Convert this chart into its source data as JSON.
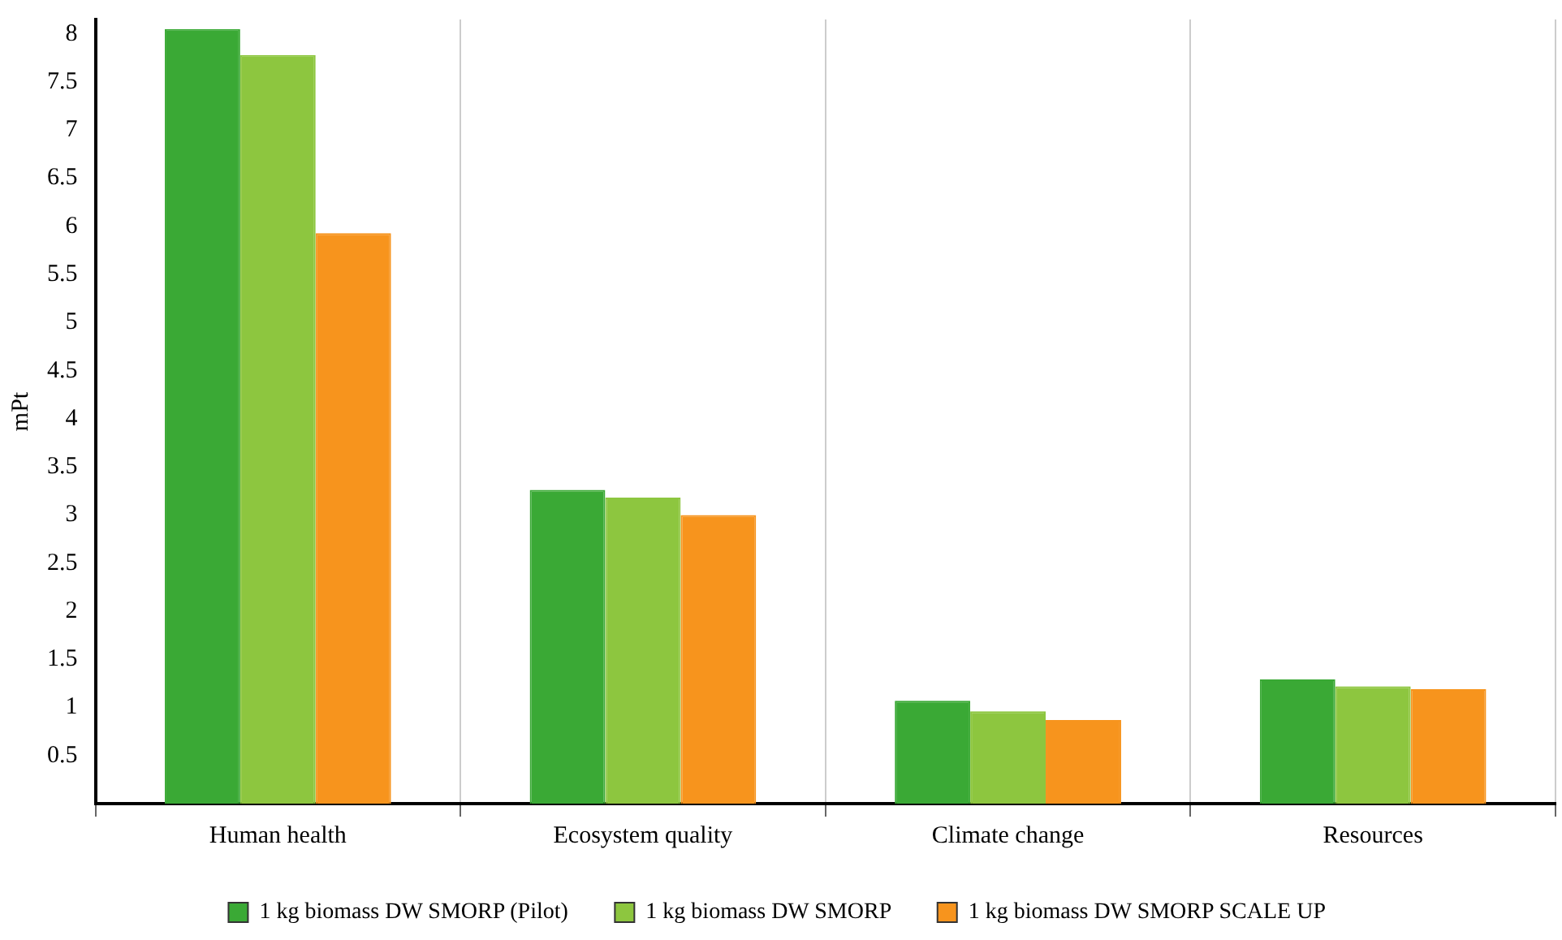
{
  "chart_data": {
    "type": "bar",
    "ylabel": "mPt",
    "categories": [
      "Human health",
      "Ecosystem quality",
      "Climate change",
      "Resources"
    ],
    "series": [
      {
        "name": "1 kg biomass DW SMORP (Pilot)",
        "color": "#3aa935",
        "values": [
          8.05,
          3.26,
          1.07,
          1.29
        ]
      },
      {
        "name": "1 kg biomass DW SMORP",
        "color": "#8dc63f",
        "values": [
          7.78,
          3.18,
          0.96,
          1.22
        ]
      },
      {
        "name": "1 kg biomass DW SMORP SCALE UP",
        "color": "#f7941d",
        "values": [
          5.93,
          3.0,
          0.87,
          1.19
        ]
      }
    ],
    "ylim": [
      0,
      8.15
    ],
    "yticks": [
      0.5,
      1,
      1.5,
      2,
      2.5,
      3,
      3.5,
      4,
      4.5,
      5,
      5.5,
      6,
      6.5,
      7,
      7.5,
      8
    ],
    "grid": "x",
    "legend": "bottom"
  }
}
